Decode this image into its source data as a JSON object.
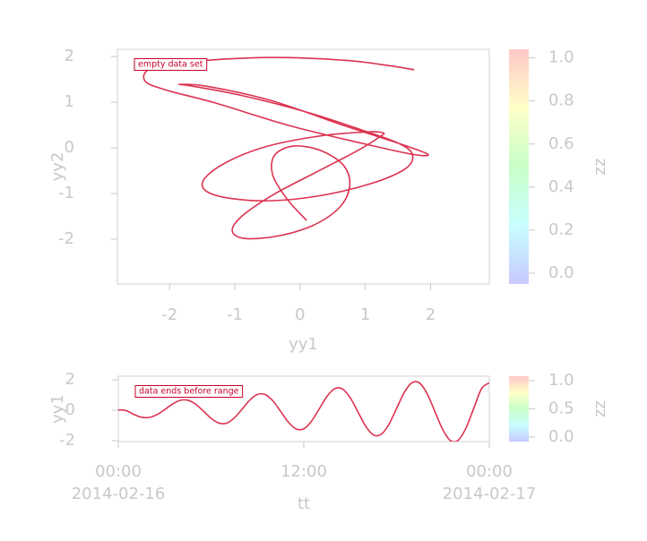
{
  "chart_data": [
    {
      "type": "line",
      "xlabel": "yy1",
      "ylabel": "yy2",
      "annotation": "empty data set",
      "color": "#dc3250",
      "x": [
        0.1,
        -0.2,
        -0.42,
        -0.39,
        -0.1,
        0.32,
        0.67,
        0.76,
        0.6,
        0.18,
        -0.38,
        -0.87,
        -1.04,
        -0.87,
        -0.38,
        0.25,
        0.88,
        1.23,
        1.27,
        1.02,
        0.25,
        -0.59,
        -1.22,
        -1.5,
        -1.29,
        -0.59,
        0.25,
        1.09,
        1.62,
        1.72,
        1.51,
        0.95,
        0.11,
        -0.87,
        -1.64,
        -1.85,
        -1.43,
        -0.45,
        0.67,
        1.51,
        1.96,
        1.72,
        0.95,
        -0.17,
        -1.29,
        -2.06,
        -2.38,
        -2.27,
        -1.57,
        -0.45,
        0.67,
        1.37,
        1.75
      ],
      "y": [
        -1.59,
        -1.12,
        -0.59,
        -0.16,
        0.04,
        -0.06,
        -0.39,
        -0.84,
        -1.31,
        -1.71,
        -1.94,
        -1.98,
        -1.8,
        -1.47,
        -1.0,
        -0.53,
        -0.06,
        0.25,
        0.33,
        0.35,
        0.25,
        0.0,
        -0.39,
        -0.78,
        -1.04,
        -1.16,
        -1.06,
        -0.78,
        -0.45,
        -0.14,
        0.1,
        0.39,
        0.78,
        1.14,
        1.35,
        1.39,
        1.35,
        1.04,
        0.49,
        0.1,
        -0.14,
        -0.14,
        0.1,
        0.49,
        0.98,
        1.27,
        1.47,
        1.75,
        1.9,
        1.98,
        1.92,
        1.8,
        1.71
      ],
      "xlim": [
        -2.8,
        2.9
      ],
      "xticks": [
        -2,
        -1,
        0,
        1,
        2
      ],
      "ylim": [
        -2.98,
        2.16
      ],
      "yticks": [
        -2,
        -1,
        0,
        1,
        2
      ],
      "colorbar": {
        "label": "zz",
        "zlim": [
          -0.05,
          1.04
        ],
        "zticks": [
          {
            "value": 0,
            "label": "0.0"
          },
          {
            "value": 0.2,
            "label": "0.2"
          },
          {
            "value": 0.4,
            "label": "0.4"
          },
          {
            "value": 0.6,
            "label": "0.6"
          },
          {
            "value": 0.8,
            "label": "0.8"
          },
          {
            "value": 1,
            "label": "1.0"
          }
        ],
        "colors": [
          "#c8c8ff",
          "#c8ffff",
          "#c8ffc8",
          "#ffffc8",
          "#ffc8c8"
        ]
      }
    },
    {
      "type": "timeseries",
      "xlabel": "tt",
      "ylabel": "yy1",
      "annotation": "data ends before range",
      "color": "#dc3250",
      "x": [
        "2014-02-16T00:00",
        "2014-02-16T00:30",
        "2014-02-16T01:00",
        "2014-02-16T01:30",
        "2014-02-16T02:00",
        "2014-02-16T02:30",
        "2014-02-16T03:00",
        "2014-02-16T03:30",
        "2014-02-16T04:00",
        "2014-02-16T04:30",
        "2014-02-16T05:00",
        "2014-02-16T05:30",
        "2014-02-16T06:00",
        "2014-02-16T06:30",
        "2014-02-16T07:00",
        "2014-02-16T07:30",
        "2014-02-16T08:00",
        "2014-02-16T08:30",
        "2014-02-16T09:00",
        "2014-02-16T09:30",
        "2014-02-16T10:00",
        "2014-02-16T10:30",
        "2014-02-16T11:00",
        "2014-02-16T11:30",
        "2014-02-16T12:00",
        "2014-02-16T12:30",
        "2014-02-16T13:00",
        "2014-02-16T13:30",
        "2014-02-16T14:00",
        "2014-02-16T14:30",
        "2014-02-16T15:00",
        "2014-02-16T15:30",
        "2014-02-16T16:00",
        "2014-02-16T16:30",
        "2014-02-16T17:00",
        "2014-02-16T17:30",
        "2014-02-16T18:00",
        "2014-02-16T18:30",
        "2014-02-16T19:00",
        "2014-02-16T19:30",
        "2014-02-16T20:00",
        "2014-02-16T20:30",
        "2014-02-16T21:00",
        "2014-02-16T21:30",
        "2014-02-16T22:00",
        "2014-02-16T22:30",
        "2014-02-16T23:00",
        "2014-02-16T23:30",
        "2014-02-17T00:00"
      ],
      "y": [
        0.02,
        -0.02,
        -0.27,
        -0.46,
        -0.47,
        -0.29,
        0.04,
        0.4,
        0.65,
        0.66,
        0.4,
        -0.05,
        -0.53,
        -0.84,
        -0.85,
        -0.51,
        0.06,
        0.66,
        1.04,
        1.03,
        0.62,
        -0.07,
        -0.78,
        -1.23,
        -1.22,
        -0.72,
        0.09,
        0.91,
        1.42,
        1.4,
        0.83,
        -0.1,
        -1.04,
        -1.62,
        -1.59,
        -0.94,
        0.11,
        1.17,
        1.81,
        1.78,
        1.05,
        -0.13,
        -1.29,
        -2.01,
        -1.96,
        -1.15,
        0.14,
        1.42,
        1.8
      ],
      "xlim": [
        "2014-02-16T00:00",
        "2014-02-17T00:00"
      ],
      "xticks": [
        {
          "value": "2014-02-16T00:00",
          "label": [
            "00:00",
            "2014-02-16"
          ]
        },
        {
          "value": "2014-02-16T12:00",
          "label": [
            "12:00"
          ]
        },
        {
          "value": "2014-02-17T00:00",
          "label": [
            "00:00",
            "2014-02-17"
          ]
        }
      ],
      "ylim": [
        -2.06,
        2.24
      ],
      "yticks": [
        -2,
        0,
        2
      ],
      "colorbar": {
        "label": "zz",
        "zlim": [
          -0.08,
          1.08
        ],
        "zticks": [
          {
            "value": 0,
            "label": "0.0"
          },
          {
            "value": 0.5,
            "label": "0.5"
          },
          {
            "value": 1,
            "label": "1.0"
          }
        ],
        "colors": [
          "#c8c8ff",
          "#c8ffff",
          "#c8ffc8",
          "#ffffc8",
          "#ffc8c8"
        ]
      }
    }
  ]
}
